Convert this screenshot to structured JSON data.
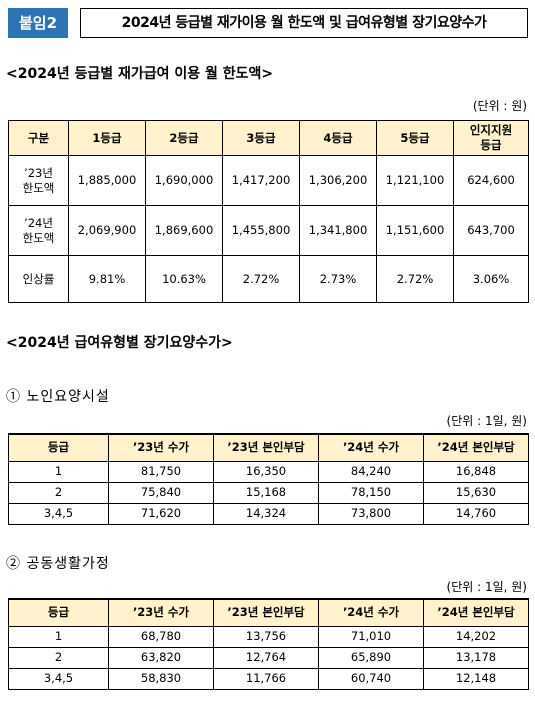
{
  "header": {
    "badge": "붙임2",
    "title": "2024년 등급별 재가이용 월 한도액 및 급여유형별 장기요양수가"
  },
  "section1": {
    "heading": "<2024년 등급별 재가급여 이용 월 한도액>",
    "unit": "(단위 : 원)",
    "table": {
      "header": [
        "구분",
        "1등급",
        "2등급",
        "3등급",
        "4등급",
        "5등급",
        "인지지원\n등급"
      ],
      "rows": [
        [
          "’23년\n한도액",
          "1,885,000",
          "1,690,000",
          "1,417,200",
          "1,306,200",
          "1,121,100",
          "624,600"
        ],
        [
          "’24년\n한도액",
          "2,069,900",
          "1,869,600",
          "1,455,800",
          "1,341,800",
          "1,151,600",
          "643,700"
        ],
        [
          "인상률",
          "9.81%",
          "10.63%",
          "2.72%",
          "2.73%",
          "2.72%",
          "3.06%"
        ]
      ]
    }
  },
  "section2": {
    "heading": "<2024년 급여유형별 장기요양수가>",
    "parts": [
      {
        "title": "① 노인요양시설",
        "unit": "(단위 : 1일, 원)",
        "table": {
          "header": [
            "등급",
            "’23년 수가",
            "’23년 본인부담",
            "’24년 수가",
            "’24년 본인부담"
          ],
          "rows": [
            [
              "1",
              "81,750",
              "16,350",
              "84,240",
              "16,848"
            ],
            [
              "2",
              "75,840",
              "15,168",
              "78,150",
              "15,630"
            ],
            [
              "3,4,5",
              "71,620",
              "14,324",
              "73,800",
              "14,760"
            ]
          ]
        }
      },
      {
        "title": "② 공동생활가정",
        "unit": "(단위 : 1일, 원)",
        "table": {
          "header": [
            "등급",
            "’23년 수가",
            "’23년 본인부담",
            "’24년 수가",
            "’24년 본인부담"
          ],
          "rows": [
            [
              "1",
              "68,780",
              "13,756",
              "71,010",
              "14,202"
            ],
            [
              "2",
              "63,820",
              "12,764",
              "65,890",
              "13,178"
            ],
            [
              "3,4,5",
              "58,830",
              "11,766",
              "60,740",
              "12,148"
            ]
          ]
        }
      }
    ]
  }
}
